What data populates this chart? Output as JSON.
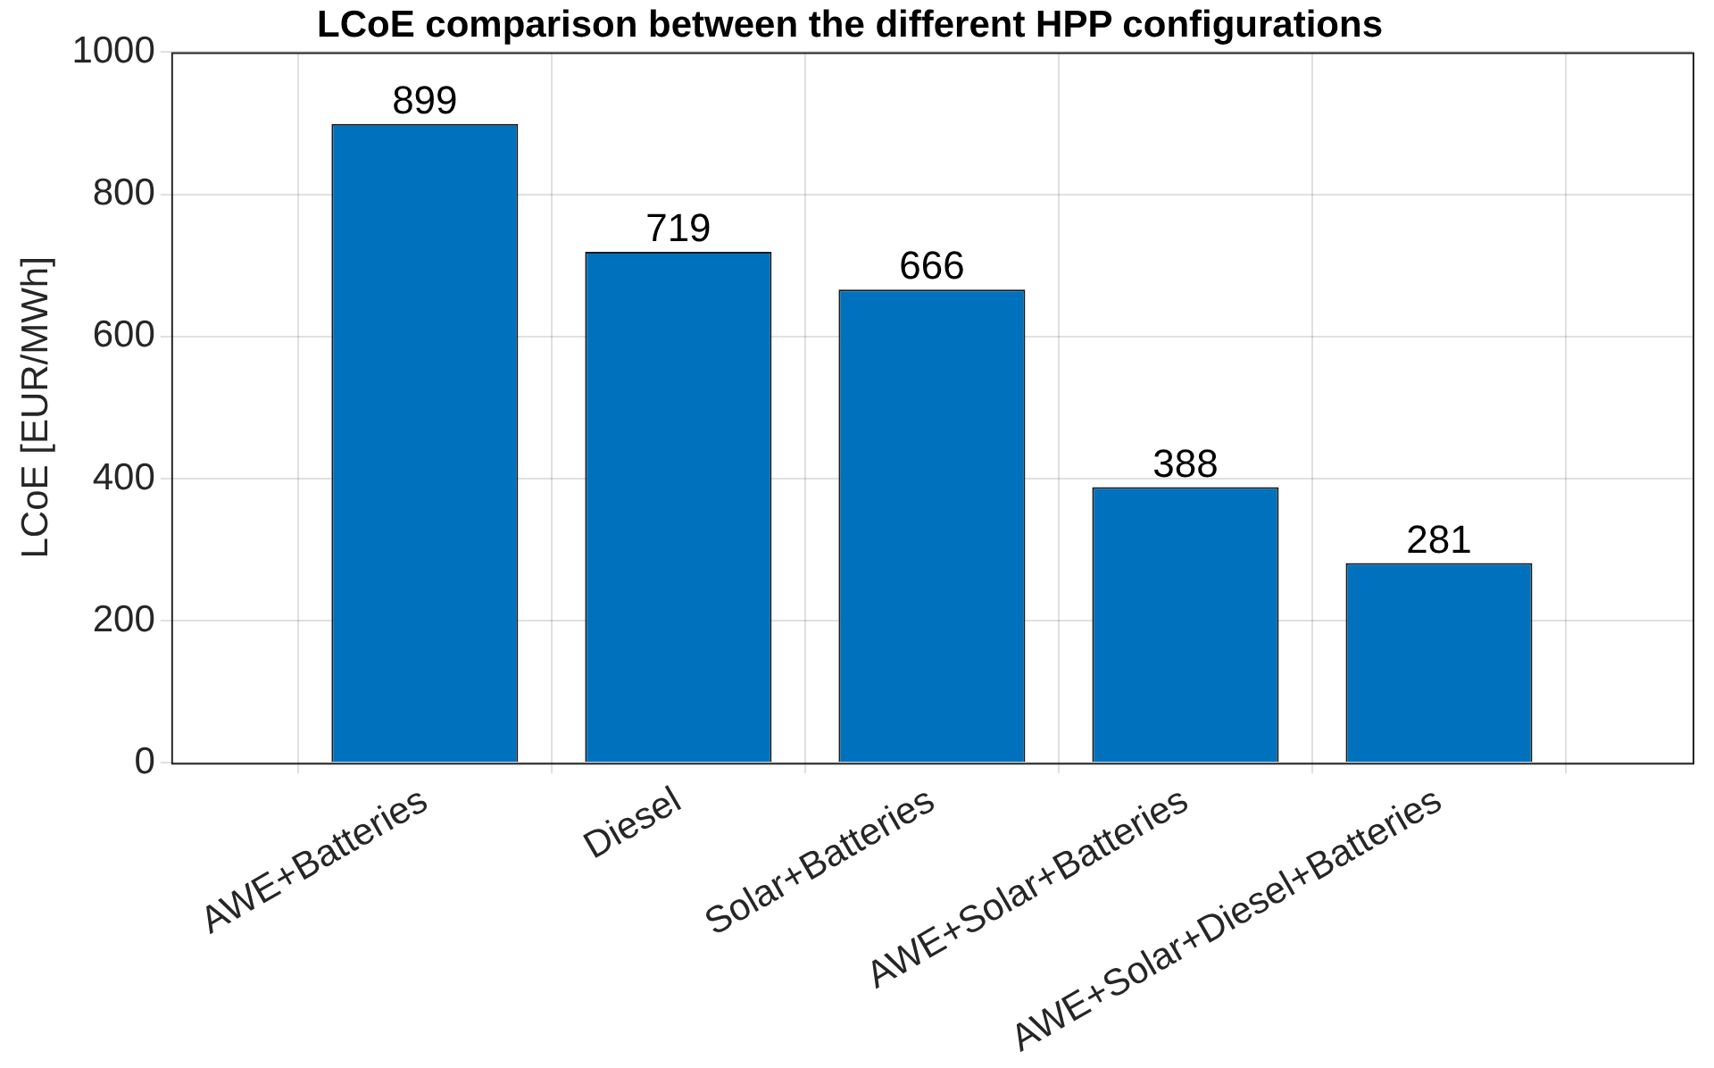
{
  "chart_data": {
    "type": "bar",
    "title": "LCoE comparison between the different HPP configurations",
    "ylabel": "LCoE [EUR/MWh]",
    "categories": [
      "AWE+Batteries",
      "Diesel",
      "Solar+Batteries",
      "AWE+Solar+Batteries",
      "AWE+Solar+Diesel+Batteries"
    ],
    "values": [
      899,
      719,
      666,
      388,
      281
    ],
    "color": "#0072bd",
    "ylim": [
      0,
      1000
    ],
    "yticks": [
      0,
      200,
      400,
      600,
      800,
      1000
    ],
    "grid": true,
    "data_labels": true,
    "legend": false
  }
}
